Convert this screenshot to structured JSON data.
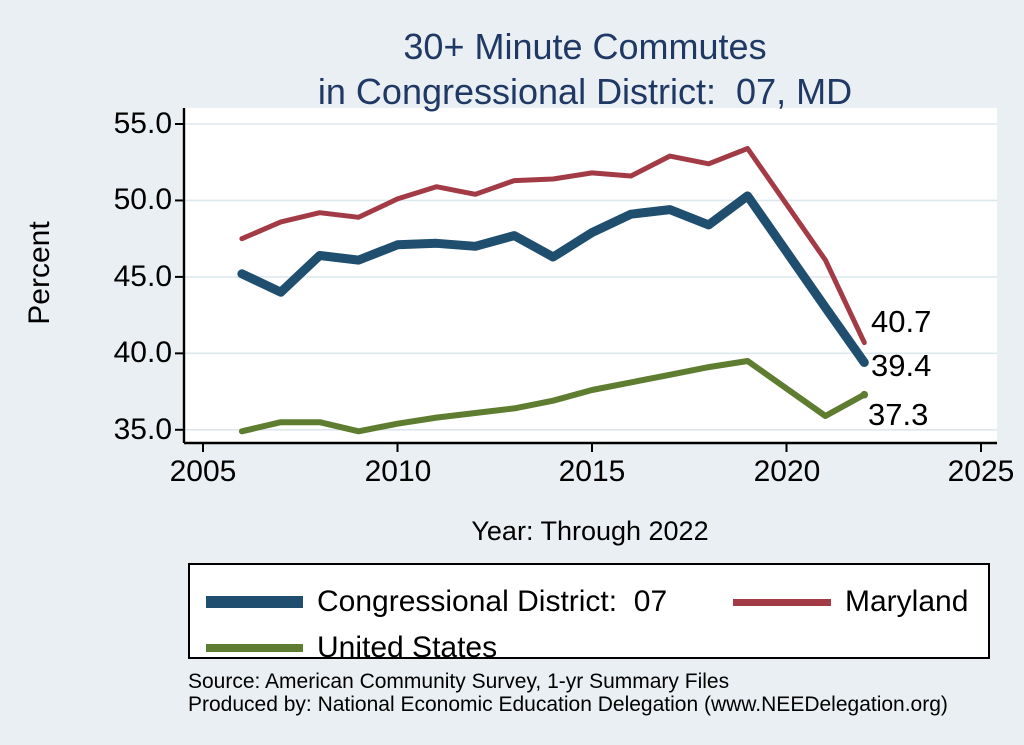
{
  "title": {
    "line1": "30+ Minute Commutes",
    "line2": "in Congressional District:  07, MD"
  },
  "chart_data": {
    "type": "line",
    "title": "30+ Minute Commutes in Congressional District: 07, MD",
    "xlabel": "Year: Through 2022",
    "ylabel": "Percent",
    "xlim": [
      2004.5,
      2025.6
    ],
    "ylim": [
      34.1,
      56.1
    ],
    "grid": "horizontal",
    "x_ticks": [
      2005,
      2010,
      2015,
      2020,
      2025
    ],
    "x_tick_labels": [
      "2005",
      "2010",
      "2015",
      "2020",
      "2025"
    ],
    "y_ticks": [
      55.0,
      50.0,
      45.0,
      40.0,
      35.0
    ],
    "y_tick_labels": [
      "55.0",
      "50.0",
      "45.0",
      "40.0",
      "35.0"
    ],
    "missing_years": [
      2020
    ],
    "series": [
      {
        "name": "Congressional District:  07",
        "color": "#1f4e6e",
        "stroke_width": 9,
        "end_dot": false,
        "points": [
          [
            2006,
            45.2
          ],
          [
            2007,
            44.0
          ],
          [
            2008,
            46.4
          ],
          [
            2009,
            46.1
          ],
          [
            2010,
            47.1
          ],
          [
            2011,
            47.2
          ],
          [
            2012,
            47.0
          ],
          [
            2013,
            47.7
          ],
          [
            2014,
            46.3
          ],
          [
            2015,
            47.9
          ],
          [
            2016,
            49.1
          ],
          [
            2017,
            49.4
          ],
          [
            2018,
            48.4
          ],
          [
            2019,
            50.3
          ],
          [
            2021,
            43.0
          ],
          [
            2022,
            39.4
          ]
        ]
      },
      {
        "name": "Maryland",
        "color": "#a23b45",
        "stroke_width": 5,
        "end_dot": false,
        "points": [
          [
            2006,
            47.5
          ],
          [
            2007,
            48.6
          ],
          [
            2008,
            49.2
          ],
          [
            2009,
            48.9
          ],
          [
            2010,
            50.1
          ],
          [
            2011,
            50.9
          ],
          [
            2012,
            50.4
          ],
          [
            2013,
            51.3
          ],
          [
            2014,
            51.4
          ],
          [
            2015,
            51.8
          ],
          [
            2016,
            51.6
          ],
          [
            2017,
            52.9
          ],
          [
            2018,
            52.4
          ],
          [
            2019,
            53.4
          ],
          [
            2021,
            46.1
          ],
          [
            2022,
            40.7
          ]
        ]
      },
      {
        "name": "United States",
        "color": "#5e7d30",
        "stroke_width": 6,
        "end_dot": true,
        "points": [
          [
            2006,
            34.9
          ],
          [
            2007,
            35.5
          ],
          [
            2008,
            35.5
          ],
          [
            2009,
            34.9
          ],
          [
            2010,
            35.4
          ],
          [
            2011,
            35.8
          ],
          [
            2012,
            36.1
          ],
          [
            2013,
            36.4
          ],
          [
            2014,
            36.9
          ],
          [
            2015,
            37.6
          ],
          [
            2016,
            38.1
          ],
          [
            2017,
            38.6
          ],
          [
            2018,
            39.1
          ],
          [
            2019,
            39.5
          ],
          [
            2021,
            35.9
          ],
          [
            2022,
            37.3
          ]
        ]
      }
    ],
    "end_labels": [
      {
        "text": "40.7",
        "series": "Maryland"
      },
      {
        "text": "39.4",
        "series": "Congressional District:  07"
      },
      {
        "text": "37.3",
        "series": "United States"
      }
    ],
    "legend_position": "bottom"
  },
  "legend": {
    "items": [
      {
        "label": "Congressional District:  07",
        "color": "#1f4e6e"
      },
      {
        "label": "Maryland",
        "color": "#a23b45"
      },
      {
        "label": "United States",
        "color": "#5e7d30"
      }
    ]
  },
  "footer": {
    "line1": "Source: American Community Survey, 1-yr Summary Files",
    "line2": "Produced by: National Economic Education Delegation (www.NEEDelegation.org)"
  },
  "colors": {
    "background": "#e9eff2",
    "plot_background": "#ffffff",
    "gridline": "#dde8ee",
    "axis": "#000000",
    "title_text": "#1f3864"
  }
}
